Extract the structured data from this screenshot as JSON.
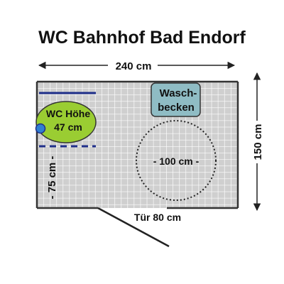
{
  "title": "WC Bahnhof Bad Endorf",
  "dimensions": {
    "width_label": "240 cm",
    "height_label": "150 cm",
    "distance_label": "- 75 cm -",
    "turning_circle_label": "- 100 cm -",
    "door_label": "Tür 80 cm"
  },
  "fixtures": {
    "washbasin_line1": "Wasch-",
    "washbasin_line2": "becken",
    "toilet_line1": "WC Höhe",
    "toilet_line2": "47 cm"
  },
  "colors": {
    "floor_fill": "#cfcfcf",
    "grid_line": "#ffffff",
    "wall": "#333333",
    "toilet_fill": "#9acd32",
    "toilet_button": "#2f7fd0",
    "washbasin_fill": "#8fbcc4",
    "grab_bar": "#1f2f8a",
    "title": "#111111"
  }
}
